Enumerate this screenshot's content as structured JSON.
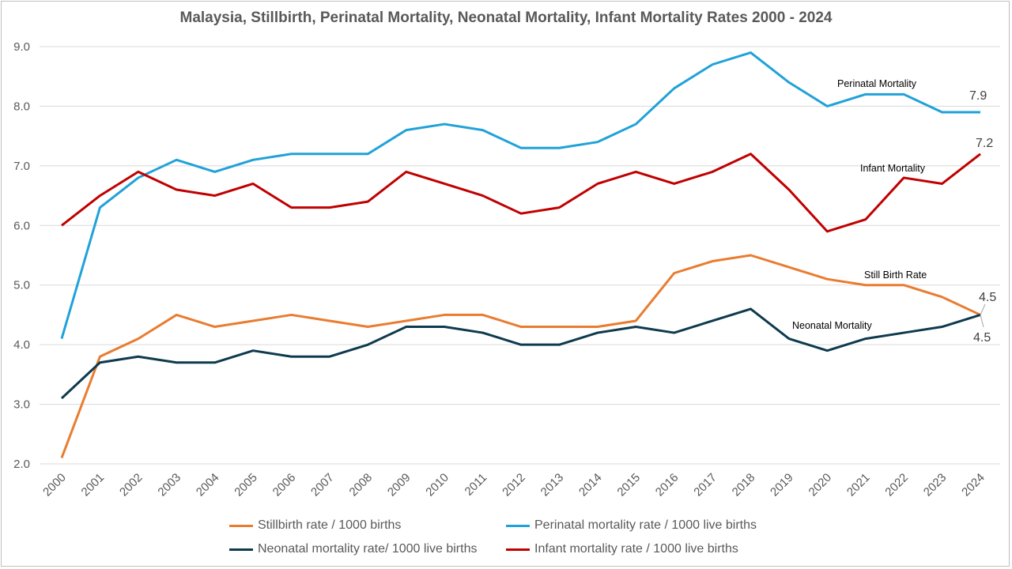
{
  "chart_data": {
    "type": "line",
    "title": "Malaysia, Stillbirth, Perinatal Mortality, Neonatal Mortality, Infant Mortality Rates 2000 - 2024",
    "xlabel": "",
    "ylabel": "",
    "ylim": [
      2.0,
      9.0
    ],
    "yticks": [
      "2.0",
      "3.0",
      "4.0",
      "5.0",
      "6.0",
      "7.0",
      "8.0",
      "9.0"
    ],
    "grid": true,
    "legend_position": "bottom",
    "x": [
      "2000",
      "2001",
      "2002",
      "2003",
      "2004",
      "2005",
      "2006",
      "2007",
      "2008",
      "2009",
      "2010",
      "2011",
      "2012",
      "2013",
      "2014",
      "2015",
      "2016",
      "2017",
      "2018",
      "2019",
      "2020",
      "2021",
      "2022",
      "2023",
      "2024"
    ],
    "series": [
      {
        "name": "Stillbirth rate / 1000 births",
        "color": "#E97C30",
        "values": [
          2.1,
          3.8,
          4.1,
          4.5,
          4.3,
          4.4,
          4.5,
          4.4,
          4.3,
          4.4,
          4.5,
          4.5,
          4.3,
          4.3,
          4.3,
          4.4,
          5.2,
          5.4,
          5.5,
          5.3,
          5.1,
          5.0,
          5.0,
          4.8,
          4.5
        ],
        "annotation": "Still Birth Rate",
        "end_label": "4.5"
      },
      {
        "name": "Perinatal mortality rate / 1000 live births",
        "color": "#1FA2D8",
        "values": [
          4.1,
          6.3,
          6.8,
          7.1,
          6.9,
          7.1,
          7.2,
          7.2,
          7.2,
          7.6,
          7.7,
          7.6,
          7.3,
          7.3,
          7.4,
          7.7,
          8.3,
          8.7,
          8.9,
          8.4,
          8.0,
          8.2,
          8.2,
          7.9,
          7.9
        ],
        "annotation": "Perinatal Mortality",
        "end_label": "7.9"
      },
      {
        "name": "Neonatal mortality rate/ 1000 live births",
        "color": "#0E3A4E",
        "values": [
          3.1,
          3.7,
          3.8,
          3.7,
          3.7,
          3.9,
          3.8,
          3.8,
          4.0,
          4.3,
          4.3,
          4.2,
          4.0,
          4.0,
          4.2,
          4.3,
          4.2,
          4.4,
          4.6,
          4.1,
          3.9,
          4.1,
          4.2,
          4.3,
          4.5
        ],
        "annotation": "Neonatal Mortality",
        "end_label": "4.5"
      },
      {
        "name": "Infant mortality rate / 1000 live births",
        "color": "#C00000",
        "values": [
          6.0,
          6.5,
          6.9,
          6.6,
          6.5,
          6.7,
          6.3,
          6.3,
          6.4,
          6.9,
          6.7,
          6.5,
          6.2,
          6.3,
          6.7,
          6.9,
          6.7,
          6.9,
          7.2,
          6.6,
          5.9,
          6.1,
          6.8,
          6.7,
          7.2
        ],
        "annotation": "Infant Mortality",
        "end_label": "7.2"
      }
    ]
  }
}
